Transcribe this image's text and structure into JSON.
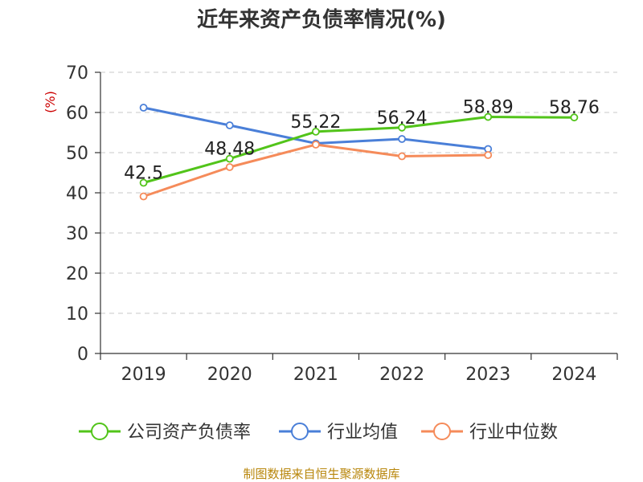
{
  "chart_data": {
    "type": "line",
    "title": "近年来资产负债率情况(%)",
    "unit_label": "(%)",
    "categories": [
      "2019",
      "2020",
      "2021",
      "2022",
      "2023",
      "2024"
    ],
    "ylim": [
      0,
      70
    ],
    "yticks": [
      0,
      10,
      20,
      30,
      40,
      50,
      60,
      70
    ],
    "grid": true,
    "legend_position": "bottom",
    "series": [
      {
        "name": "公司资产负债率",
        "color": "#52c41a",
        "values": [
          42.5,
          48.48,
          55.22,
          56.24,
          58.89,
          58.76
        ],
        "labels": [
          "42.5",
          "48.48",
          "55.22",
          "56.24",
          "58.89",
          "58.76"
        ]
      },
      {
        "name": "行业均值",
        "color": "#4a7fd8",
        "values": [
          61.2,
          56.8,
          52.3,
          53.4,
          50.9,
          null
        ],
        "labels": null
      },
      {
        "name": "行业中位数",
        "color": "#f58b5a",
        "values": [
          39.1,
          46.4,
          52.0,
          49.1,
          49.4,
          null
        ],
        "labels": null
      }
    ],
    "source": "制图数据来自恒生聚源数据库"
  }
}
